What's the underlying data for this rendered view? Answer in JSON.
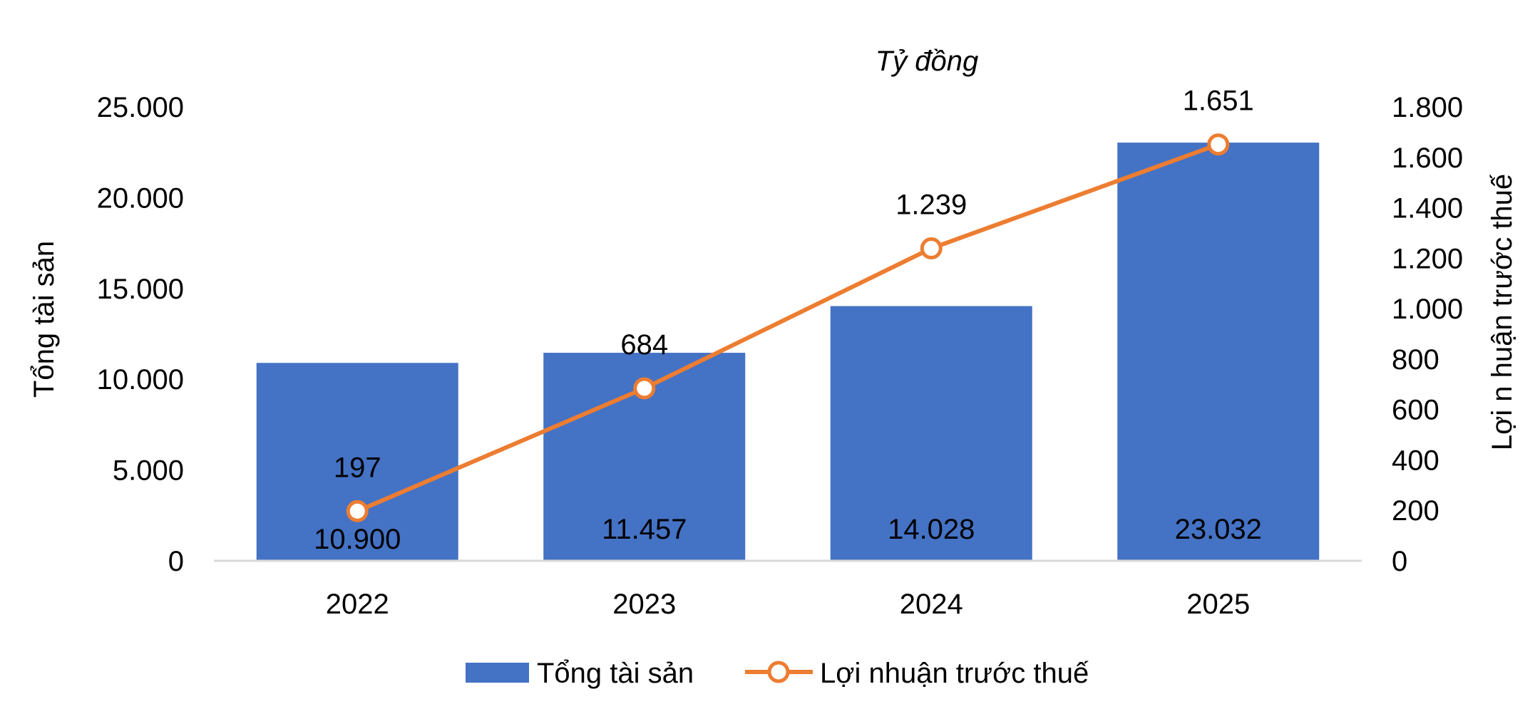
{
  "chart_data": {
    "type": "bar",
    "unit_label": "Tỷ đồng",
    "categories": [
      "2022",
      "2023",
      "2024",
      "2025"
    ],
    "series": [
      {
        "name": "Tổng tài sản",
        "type": "bar",
        "axis": "left",
        "color": "#4472C4",
        "values": [
          10900,
          11457,
          14028,
          23032
        ],
        "labels": [
          "10.900",
          "11.457",
          "14.028",
          "23.032"
        ]
      },
      {
        "name": "Lợi nhuận trước thuế",
        "type": "line",
        "axis": "right",
        "color": "#ED7D31",
        "marker": "circle-open",
        "values": [
          197,
          684,
          1239,
          1651
        ],
        "labels": [
          "197",
          "684",
          "1.239",
          "1.651"
        ]
      }
    ],
    "y_left": {
      "label": "Tổng tài sản",
      "range": [
        0,
        25000
      ],
      "ticks": [
        0,
        5000,
        10000,
        15000,
        20000,
        25000
      ],
      "tick_labels": [
        "0",
        "5.000",
        "10.000",
        "15.000",
        "20.000",
        "25.000"
      ]
    },
    "y_right": {
      "label": "Lợi n huận trước thuế",
      "range": [
        0,
        1800
      ],
      "ticks": [
        0,
        200,
        400,
        600,
        800,
        1000,
        1200,
        1400,
        1600,
        1800
      ],
      "tick_labels": [
        "0",
        "200",
        "400",
        "600",
        "800",
        "1.000",
        "1.200",
        "1.400",
        "1.600",
        "1.800"
      ]
    },
    "grid": false,
    "legend": {
      "position": "bottom",
      "items": [
        "Tổng tài sản",
        "Lợi nhuận trước thuế"
      ]
    }
  }
}
